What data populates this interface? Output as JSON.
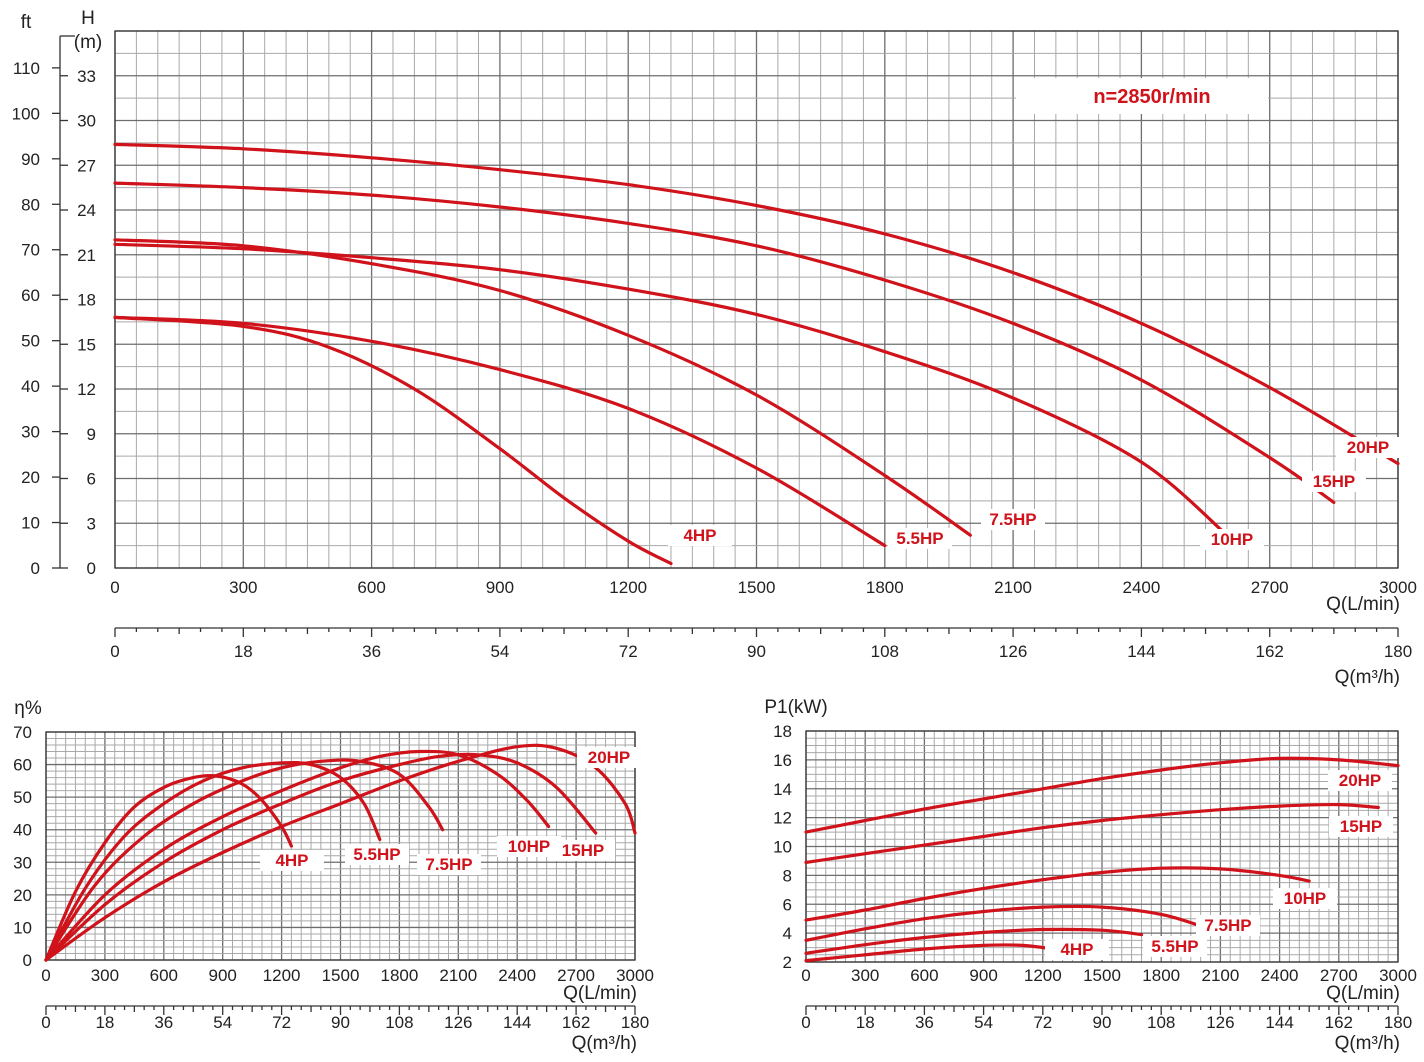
{
  "chart_data": [
    {
      "id": "head",
      "type": "line",
      "note": "n=2850r/min",
      "ylabel_ft": "ft",
      "ylabel_h": "H",
      "ylabel_h_unit": "(m)",
      "xlabel_lmin": "Q(L/min)",
      "xlabel_m3h": "Q(m³/h)",
      "xlim": [
        0,
        3000
      ],
      "ylim": [
        0,
        36
      ],
      "x_ticks": [
        0,
        300,
        600,
        900,
        1200,
        1500,
        1800,
        2100,
        2400,
        2700,
        3000
      ],
      "y_ticks_m": [
        0,
        3,
        6,
        9,
        12,
        15,
        18,
        21,
        24,
        27,
        30,
        33
      ],
      "y_ticks_ft": [
        0,
        10,
        20,
        30,
        40,
        50,
        60,
        70,
        80,
        90,
        100,
        110
      ],
      "x2_ticks": [
        0,
        18,
        36,
        54,
        72,
        90,
        108,
        126,
        144,
        162,
        180
      ],
      "series": [
        {
          "name": "4HP",
          "x": [
            0,
            300,
            500,
            700,
            900,
            1050,
            1200,
            1300
          ],
          "y": [
            16.8,
            16.2,
            14.8,
            12.0,
            8.0,
            4.7,
            1.8,
            0.3
          ]
        },
        {
          "name": "5.5HP",
          "x": [
            0,
            300,
            600,
            900,
            1200,
            1500,
            1800
          ],
          "y": [
            16.8,
            16.4,
            15.2,
            13.3,
            10.7,
            6.7,
            1.5
          ]
        },
        {
          "name": "7.5HP",
          "x": [
            0,
            300,
            600,
            900,
            1200,
            1500,
            1800,
            2000
          ],
          "y": [
            22.0,
            21.6,
            20.4,
            18.6,
            15.6,
            11.6,
            6.2,
            2.2
          ]
        },
        {
          "name": "10HP",
          "x": [
            0,
            300,
            600,
            900,
            1200,
            1500,
            1800,
            2100,
            2400,
            2600
          ],
          "y": [
            21.7,
            21.4,
            20.8,
            20.0,
            18.7,
            17.0,
            14.5,
            11.4,
            7.1,
            2.2
          ]
        },
        {
          "name": "15HP",
          "x": [
            0,
            300,
            600,
            900,
            1200,
            1500,
            1800,
            2100,
            2400,
            2700,
            2850
          ],
          "y": [
            25.8,
            25.5,
            25.0,
            24.2,
            23.1,
            21.6,
            19.3,
            16.4,
            12.6,
            7.4,
            4.4
          ]
        },
        {
          "name": "20HP",
          "x": [
            0,
            300,
            600,
            900,
            1200,
            1500,
            1800,
            2100,
            2400,
            2700,
            3000
          ],
          "y": [
            28.4,
            28.1,
            27.5,
            26.7,
            25.7,
            24.3,
            22.4,
            19.8,
            16.4,
            12.1,
            7.0
          ]
        }
      ]
    },
    {
      "id": "efficiency",
      "type": "line",
      "ylabel": "η%",
      "xlabel_lmin": "Q(L/min)",
      "xlabel_m3h": "Q(m³/h)",
      "xlim": [
        0,
        3000
      ],
      "ylim": [
        0,
        70
      ],
      "x_ticks": [
        0,
        300,
        600,
        900,
        1200,
        1500,
        1800,
        2100,
        2400,
        2700,
        3000
      ],
      "y_ticks": [
        0,
        10,
        20,
        30,
        40,
        50,
        60,
        70
      ],
      "x2_ticks": [
        0,
        18,
        36,
        54,
        72,
        90,
        108,
        126,
        144,
        162,
        180
      ],
      "series": [
        {
          "name": "4HP",
          "x": [
            0,
            150,
            300,
            450,
            600,
            750,
            870,
            1000,
            1100,
            1200,
            1250
          ],
          "y": [
            0,
            21,
            36,
            47,
            53,
            56,
            56.5,
            54,
            49,
            41,
            35
          ]
        },
        {
          "name": "5.5HP",
          "x": [
            0,
            200,
            400,
            600,
            800,
            1000,
            1200,
            1350,
            1500,
            1620,
            1700
          ],
          "y": [
            0,
            22,
            38,
            48,
            55,
            59,
            60.5,
            60,
            56,
            48,
            37
          ]
        },
        {
          "name": "7.5HP",
          "x": [
            0,
            250,
            500,
            750,
            1000,
            1200,
            1400,
            1600,
            1800,
            1950,
            2020
          ],
          "y": [
            0,
            23,
            38,
            48,
            55,
            59,
            61,
            61,
            57,
            47,
            40
          ]
        },
        {
          "name": "10HP",
          "x": [
            0,
            300,
            600,
            900,
            1200,
            1500,
            1700,
            1900,
            2100,
            2300,
            2450,
            2560
          ],
          "y": [
            0,
            20,
            34,
            44,
            52,
            59,
            62.5,
            64,
            63,
            57,
            49,
            41
          ]
        },
        {
          "name": "15HP",
          "x": [
            0,
            300,
            600,
            900,
            1200,
            1500,
            1800,
            2000,
            2200,
            2400,
            2600,
            2800
          ],
          "y": [
            0,
            17,
            30,
            40,
            48,
            55,
            60,
            62.5,
            63,
            60.5,
            53,
            39
          ]
        },
        {
          "name": "20HP",
          "x": [
            0,
            300,
            600,
            900,
            1200,
            1500,
            1800,
            2100,
            2400,
            2600,
            2800,
            2950,
            3000
          ],
          "y": [
            0,
            13,
            24,
            33,
            41,
            48,
            55,
            61,
            65.5,
            65,
            59,
            48,
            39
          ]
        }
      ]
    },
    {
      "id": "power",
      "type": "line",
      "ylabel": "P1(kW)",
      "xlabel_lmin": "Q(L/min)",
      "xlabel_m3h": "Q(m³/h)",
      "xlim": [
        0,
        3000
      ],
      "ylim": [
        2,
        18
      ],
      "x_ticks": [
        0,
        300,
        600,
        900,
        1200,
        1500,
        1800,
        2100,
        2400,
        2700,
        3000
      ],
      "y_ticks": [
        2,
        4,
        6,
        8,
        10,
        12,
        14,
        16,
        18
      ],
      "x2_ticks": [
        0,
        18,
        36,
        54,
        72,
        90,
        108,
        126,
        144,
        162,
        180
      ],
      "series": [
        {
          "name": "4HP",
          "x": [
            0,
            300,
            600,
            900,
            1100,
            1300
          ],
          "y": [
            2.1,
            2.5,
            2.9,
            3.15,
            3.15,
            2.8
          ]
        },
        {
          "name": "5.5HP",
          "x": [
            0,
            300,
            600,
            900,
            1200,
            1500,
            1700
          ],
          "y": [
            2.6,
            3.2,
            3.7,
            4.05,
            4.25,
            4.2,
            3.9
          ]
        },
        {
          "name": "7.5HP",
          "x": [
            0,
            300,
            600,
            900,
            1200,
            1500,
            1800,
            2000
          ],
          "y": [
            3.5,
            4.3,
            5.0,
            5.5,
            5.8,
            5.8,
            5.3,
            4.5
          ]
        },
        {
          "name": "10HP",
          "x": [
            0,
            300,
            600,
            900,
            1200,
            1500,
            1800,
            2100,
            2400,
            2550
          ],
          "y": [
            4.9,
            5.6,
            6.4,
            7.1,
            7.7,
            8.2,
            8.5,
            8.45,
            8.0,
            7.6
          ]
        },
        {
          "name": "15HP",
          "x": [
            0,
            300,
            600,
            900,
            1200,
            1500,
            1800,
            2100,
            2400,
            2700,
            2900
          ],
          "y": [
            8.9,
            9.5,
            10.1,
            10.7,
            11.3,
            11.8,
            12.2,
            12.55,
            12.8,
            12.9,
            12.7
          ]
        },
        {
          "name": "20HP",
          "x": [
            0,
            300,
            600,
            900,
            1200,
            1500,
            1800,
            2100,
            2400,
            2700,
            3000
          ],
          "y": [
            11.0,
            11.8,
            12.6,
            13.3,
            14.0,
            14.7,
            15.3,
            15.8,
            16.1,
            16.0,
            15.6
          ]
        }
      ]
    }
  ]
}
